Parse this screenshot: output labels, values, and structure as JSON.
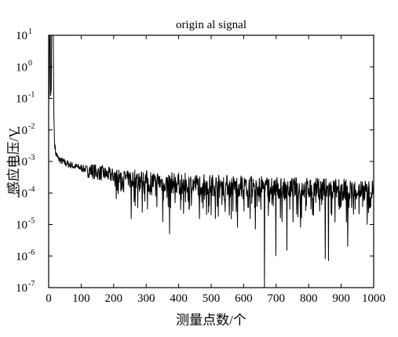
{
  "chart_data": {
    "type": "line",
    "title": "origin al signal",
    "xlabel": "测量点数/个",
    "ylabel": "感应电压/V",
    "xlim": [
      0,
      1000
    ],
    "ylim": [
      1e-07,
      10
    ],
    "yscale": "log",
    "grid": false,
    "x_ticks": [
      0,
      100,
      200,
      300,
      400,
      500,
      600,
      700,
      800,
      900,
      1000
    ],
    "x_tick_labels": [
      "0",
      "100",
      "200",
      "300",
      "400",
      "500",
      "600",
      "700",
      "800",
      "900",
      "1000"
    ],
    "y_ticks": [
      1e-07,
      1e-06,
      1e-05,
      0.0001,
      0.001,
      0.01,
      0.1,
      1,
      10
    ],
    "y_tick_labels": [
      {
        "base": "10",
        "exp": "-7"
      },
      {
        "base": "10",
        "exp": "-6"
      },
      {
        "base": "10",
        "exp": "-5"
      },
      {
        "base": "10",
        "exp": "-4"
      },
      {
        "base": "10",
        "exp": "-3"
      },
      {
        "base": "10",
        "exp": "-2"
      },
      {
        "base": "10",
        "exp": "-1"
      },
      {
        "base": "10",
        "exp": "0"
      },
      {
        "base": "10",
        "exp": "1"
      }
    ],
    "series": [
      {
        "color": "#000000",
        "description_points": [
          [
            1,
            0.1
          ],
          [
            2,
            0.15
          ],
          [
            3,
            10
          ],
          [
            5,
            10
          ],
          [
            6,
            0.12
          ],
          [
            8,
            0.2
          ],
          [
            9,
            10
          ],
          [
            14,
            10
          ],
          [
            16,
            0.03
          ],
          [
            18,
            0.004
          ],
          [
            22,
            0.0018
          ],
          [
            30,
            0.0012
          ],
          [
            50,
            0.0009
          ],
          [
            80,
            0.0007
          ],
          [
            120,
            0.00055
          ],
          [
            150,
            0.00045
          ],
          [
            200,
            0.00035
          ],
          [
            250,
            0.00028
          ],
          [
            300,
            0.00024
          ],
          [
            350,
            0.00022
          ],
          [
            400,
            0.0002
          ],
          [
            500,
            0.00018
          ],
          [
            600,
            0.00016
          ],
          [
            700,
            0.00015
          ],
          [
            800,
            0.00014
          ],
          [
            900,
            0.00013
          ],
          [
            1000,
            0.00012
          ]
        ],
        "spikes": [
          {
            "x": 254,
            "y": 1.5e-05
          },
          {
            "x": 351,
            "y": 1.2e-05
          },
          {
            "x": 372,
            "y": 5e-06
          },
          {
            "x": 464,
            "y": 1.5e-05
          },
          {
            "x": 500,
            "y": 2e-05
          },
          {
            "x": 513,
            "y": 1.5e-05
          },
          {
            "x": 543,
            "y": 2.5e-05
          },
          {
            "x": 581,
            "y": 8e-06
          },
          {
            "x": 620,
            "y": 1.5e-05
          },
          {
            "x": 636,
            "y": 7e-06
          },
          {
            "x": 664,
            "y": 1e-07
          },
          {
            "x": 699,
            "y": 1e-06
          },
          {
            "x": 718,
            "y": 1.2e-05
          },
          {
            "x": 733,
            "y": 1.5e-06
          },
          {
            "x": 775,
            "y": 8e-06
          },
          {
            "x": 812,
            "y": 2e-05
          },
          {
            "x": 851,
            "y": 8e-07
          },
          {
            "x": 861,
            "y": 7e-07
          },
          {
            "x": 920,
            "y": 2e-06
          },
          {
            "x": 980,
            "y": 1e-05
          }
        ]
      }
    ]
  }
}
